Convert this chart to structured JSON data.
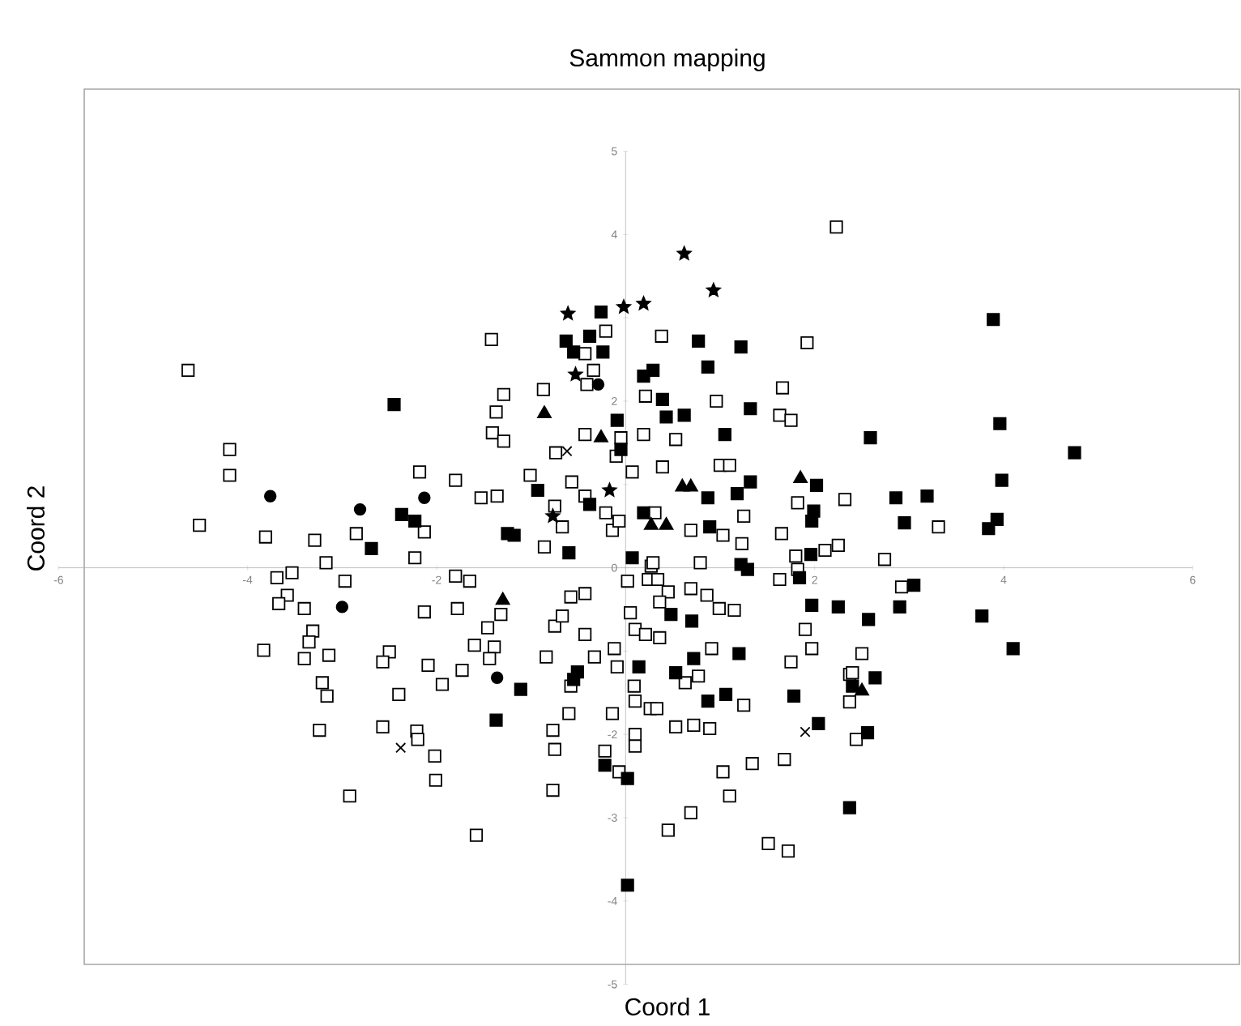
{
  "chart_data": {
    "type": "scatter",
    "title": "Sammon mapping",
    "xlabel": "Coord 1",
    "ylabel": "Coord 2",
    "xlim": [
      -6,
      6
    ],
    "ylim": [
      -5,
      5
    ],
    "xticks": [
      -6,
      -4,
      -2,
      {
        "value": 0,
        "label": null
      },
      2,
      4,
      6
    ],
    "yticks": [
      -5,
      -4,
      -3,
      -2,
      {
        "value": -1,
        "label": null
      },
      0,
      {
        "value": 1,
        "label": null
      },
      2,
      {
        "value": 3,
        "label": null
      },
      4,
      5
    ],
    "series": [
      {
        "color": "#ffffff",
        "marker": "square",
        "x": [
          -4.63,
          -4.19,
          -4.19,
          -4.51,
          -3.81,
          -3.29,
          -2.85,
          -3.17,
          -2.18,
          -1.8,
          -2.13,
          -2.23,
          -1.42,
          -1.37,
          -1.41,
          -1.53,
          -1.36,
          -1.29,
          -3.69,
          -3.53,
          -2.97,
          -3.58,
          -3.67,
          -3.4,
          -3.31,
          -3.35,
          -3.4,
          -3.14,
          -3.83,
          -3.21,
          -3.16,
          -3.24,
          -2.92,
          -2.5,
          -2.57,
          -2.4,
          -2.57,
          -2.21,
          -2.2,
          -2.02,
          -2.01,
          -1.58,
          -2.13,
          -1.78,
          -1.8,
          -1.65,
          -2.09,
          -1.73,
          -1.94,
          -1.46,
          -1.32,
          -1.6,
          -1.39,
          -1.44,
          0.02,
          0.27,
          0.24,
          0.34,
          0.45,
          0.36,
          0.69,
          0.86,
          0.99,
          1.15,
          0.79,
          1.63,
          1.82,
          -0.58,
          -0.43,
          -0.75,
          -0.67,
          -0.43,
          0.05,
          0.1,
          0.21,
          0.36,
          -0.84,
          -0.33,
          -0.12,
          -0.09,
          0.91,
          0.63,
          0.77,
          0.09,
          0.1,
          0.26,
          0.33,
          1.25,
          -0.58,
          -0.6,
          -0.14,
          -0.77,
          -0.75,
          -0.77,
          0.53,
          0.72,
          0.89,
          0.1,
          0.1,
          -0.22,
          -0.07,
          1.03,
          1.34,
          1.68,
          1.1,
          0.69,
          0.45,
          1.51,
          1.72,
          1.9,
          1.97,
          1.75,
          2.37,
          2.37,
          2.74,
          2.92,
          2.5,
          2.4,
          2.44,
          2.23,
          -0.21,
          0.38,
          1.92,
          -0.43,
          -0.34,
          -0.41,
          -0.87,
          0.21,
          1.66,
          0.96,
          1.63,
          1.75,
          -1.29,
          -0.43,
          -0.05,
          0.19,
          0.53,
          -0.1,
          -0.74,
          0.07,
          0.39,
          1.0,
          1.1,
          -1.01,
          -0.57,
          -0.43,
          -0.75,
          -0.67,
          -0.21,
          -0.14,
          -0.07,
          0.31,
          0.69,
          1.03,
          1.25,
          1.23,
          1.65,
          1.82,
          2.32,
          2.25,
          2.11,
          1.8,
          -0.86,
          0.29,
          3.31
        ],
        "values": [
          2.37,
          1.42,
          1.11,
          0.51,
          0.37,
          0.33,
          0.41,
          0.06,
          1.15,
          1.05,
          0.43,
          0.12,
          2.74,
          1.87,
          1.62,
          0.84,
          0.86,
          2.08,
          -0.12,
          -0.06,
          -0.16,
          -0.33,
          -0.43,
          -0.49,
          -0.76,
          -0.89,
          -1.09,
          -1.05,
          -0.99,
          -1.38,
          -1.54,
          -1.95,
          -2.74,
          -1.01,
          -1.13,
          -1.52,
          -1.91,
          -1.96,
          -2.06,
          -2.26,
          -2.55,
          -3.21,
          -0.53,
          -0.49,
          -0.1,
          -0.16,
          -1.17,
          -1.23,
          -1.4,
          -0.72,
          -0.56,
          -0.93,
          -0.95,
          -1.09,
          -0.16,
          0.02,
          -0.14,
          -0.14,
          -0.29,
          -0.41,
          -0.25,
          -0.33,
          -0.49,
          -0.51,
          0.06,
          -0.14,
          -0.02,
          -0.35,
          -0.31,
          -0.7,
          -0.58,
          -0.8,
          -0.54,
          -0.74,
          -0.8,
          -0.84,
          -1.07,
          -1.07,
          -0.97,
          -1.19,
          -0.97,
          -1.38,
          -1.3,
          -1.42,
          -1.6,
          -1.69,
          -1.69,
          -1.65,
          -1.42,
          -1.75,
          -1.75,
          -1.95,
          -2.18,
          -2.67,
          -1.91,
          -1.89,
          -1.93,
          -2.0,
          -2.14,
          -2.2,
          -2.45,
          -2.45,
          -2.35,
          -2.3,
          -2.74,
          -2.94,
          -3.15,
          -3.31,
          -3.4,
          -0.74,
          -0.97,
          -1.13,
          -1.28,
          -1.61,
          0.1,
          -0.23,
          -1.03,
          -1.26,
          -2.06,
          4.09,
          2.84,
          2.78,
          2.7,
          2.57,
          2.37,
          2.2,
          2.14,
          2.06,
          2.16,
          2.0,
          1.83,
          1.77,
          1.52,
          1.6,
          1.56,
          1.6,
          1.54,
          1.34,
          1.38,
          1.15,
          1.21,
          1.23,
          1.23,
          1.11,
          1.03,
          0.86,
          0.74,
          0.49,
          0.66,
          0.45,
          0.56,
          0.66,
          0.45,
          0.39,
          0.62,
          0.29,
          0.41,
          0.78,
          0.82,
          0.27,
          0.21,
          0.14,
          0.25,
          0.06,
          0.49
        ]
      },
      {
        "color": "#000000",
        "marker": "square",
        "x": [
          -2.45,
          -2.37,
          -2.23,
          -2.69,
          -1.25,
          -0.26,
          -0.63,
          -0.55,
          -0.38,
          -0.24,
          0.19,
          0.29,
          0.77,
          1.22,
          0.87,
          0.39,
          0.43,
          0.62,
          1.32,
          -0.09,
          -0.05,
          1.05,
          -0.93,
          -0.38,
          0.87,
          1.18,
          1.32,
          2.02,
          1.99,
          1.97,
          -1.18,
          -0.6,
          0.19,
          0.89,
          1.96,
          0.07,
          1.22,
          3.89,
          3.96,
          2.59,
          4.75,
          3.98,
          2.86,
          3.19,
          2.95,
          3.93,
          3.84,
          1.29,
          1.84,
          1.97,
          2.25,
          0.48,
          0.7,
          1.2,
          0.72,
          0.53,
          0.14,
          -0.51,
          -0.55,
          -1.11,
          0.87,
          1.06,
          1.78,
          2.04,
          -0.22,
          0.02,
          0.02,
          2.37,
          -1.37,
          3.05,
          2.57,
          2.9,
          3.77,
          4.1,
          2.64,
          2.4,
          2.56
        ],
        "values": [
          1.96,
          0.64,
          0.56,
          0.23,
          0.41,
          3.07,
          2.72,
          2.59,
          2.78,
          2.59,
          2.3,
          2.37,
          2.72,
          2.65,
          2.41,
          2.02,
          1.81,
          1.83,
          1.91,
          1.77,
          1.42,
          1.6,
          0.93,
          0.76,
          0.84,
          0.89,
          1.03,
          0.99,
          0.68,
          0.56,
          0.39,
          0.18,
          0.66,
          0.49,
          0.16,
          0.12,
          0.04,
          2.98,
          1.73,
          1.56,
          1.38,
          1.05,
          0.84,
          0.86,
          0.54,
          0.58,
          0.47,
          -0.02,
          -0.12,
          -0.45,
          -0.47,
          -0.56,
          -0.64,
          -1.03,
          -1.09,
          -1.26,
          -1.19,
          -1.25,
          -1.34,
          -1.46,
          -1.6,
          -1.52,
          -1.54,
          -1.87,
          -2.37,
          -2.53,
          -3.81,
          -2.88,
          -1.83,
          -0.21,
          -0.62,
          -0.47,
          -0.58,
          -0.97,
          -1.32,
          -1.42,
          -1.98
        ]
      },
      {
        "color": "#000000",
        "marker": "triangle",
        "x": [
          -0.86,
          -0.26,
          0.6,
          0.69,
          0.27,
          0.43,
          1.85,
          -1.3,
          2.5
        ],
        "values": [
          1.85,
          1.56,
          0.97,
          0.97,
          0.51,
          0.51,
          1.07,
          -0.39,
          -1.48
        ]
      },
      {
        "color": "#000000",
        "marker": "circle",
        "x": [
          -3.76,
          -2.81,
          -2.13,
          -0.29,
          -3.0,
          -1.36
        ],
        "values": [
          0.86,
          0.7,
          0.84,
          2.2,
          -0.47,
          -1.32
        ]
      },
      {
        "color": "#000000",
        "marker": "cross",
        "x": [
          -0.62,
          -2.38,
          1.9
        ],
        "values": [
          1.4,
          -2.16,
          -1.97
        ]
      },
      {
        "color": "#000000",
        "marker": "star",
        "x": [
          -0.61,
          -0.02,
          0.19,
          0.62,
          0.93,
          -0.53,
          -0.17,
          -0.77
        ],
        "values": [
          3.05,
          3.13,
          3.17,
          3.77,
          3.33,
          2.32,
          0.93,
          0.62
        ]
      }
    ]
  }
}
